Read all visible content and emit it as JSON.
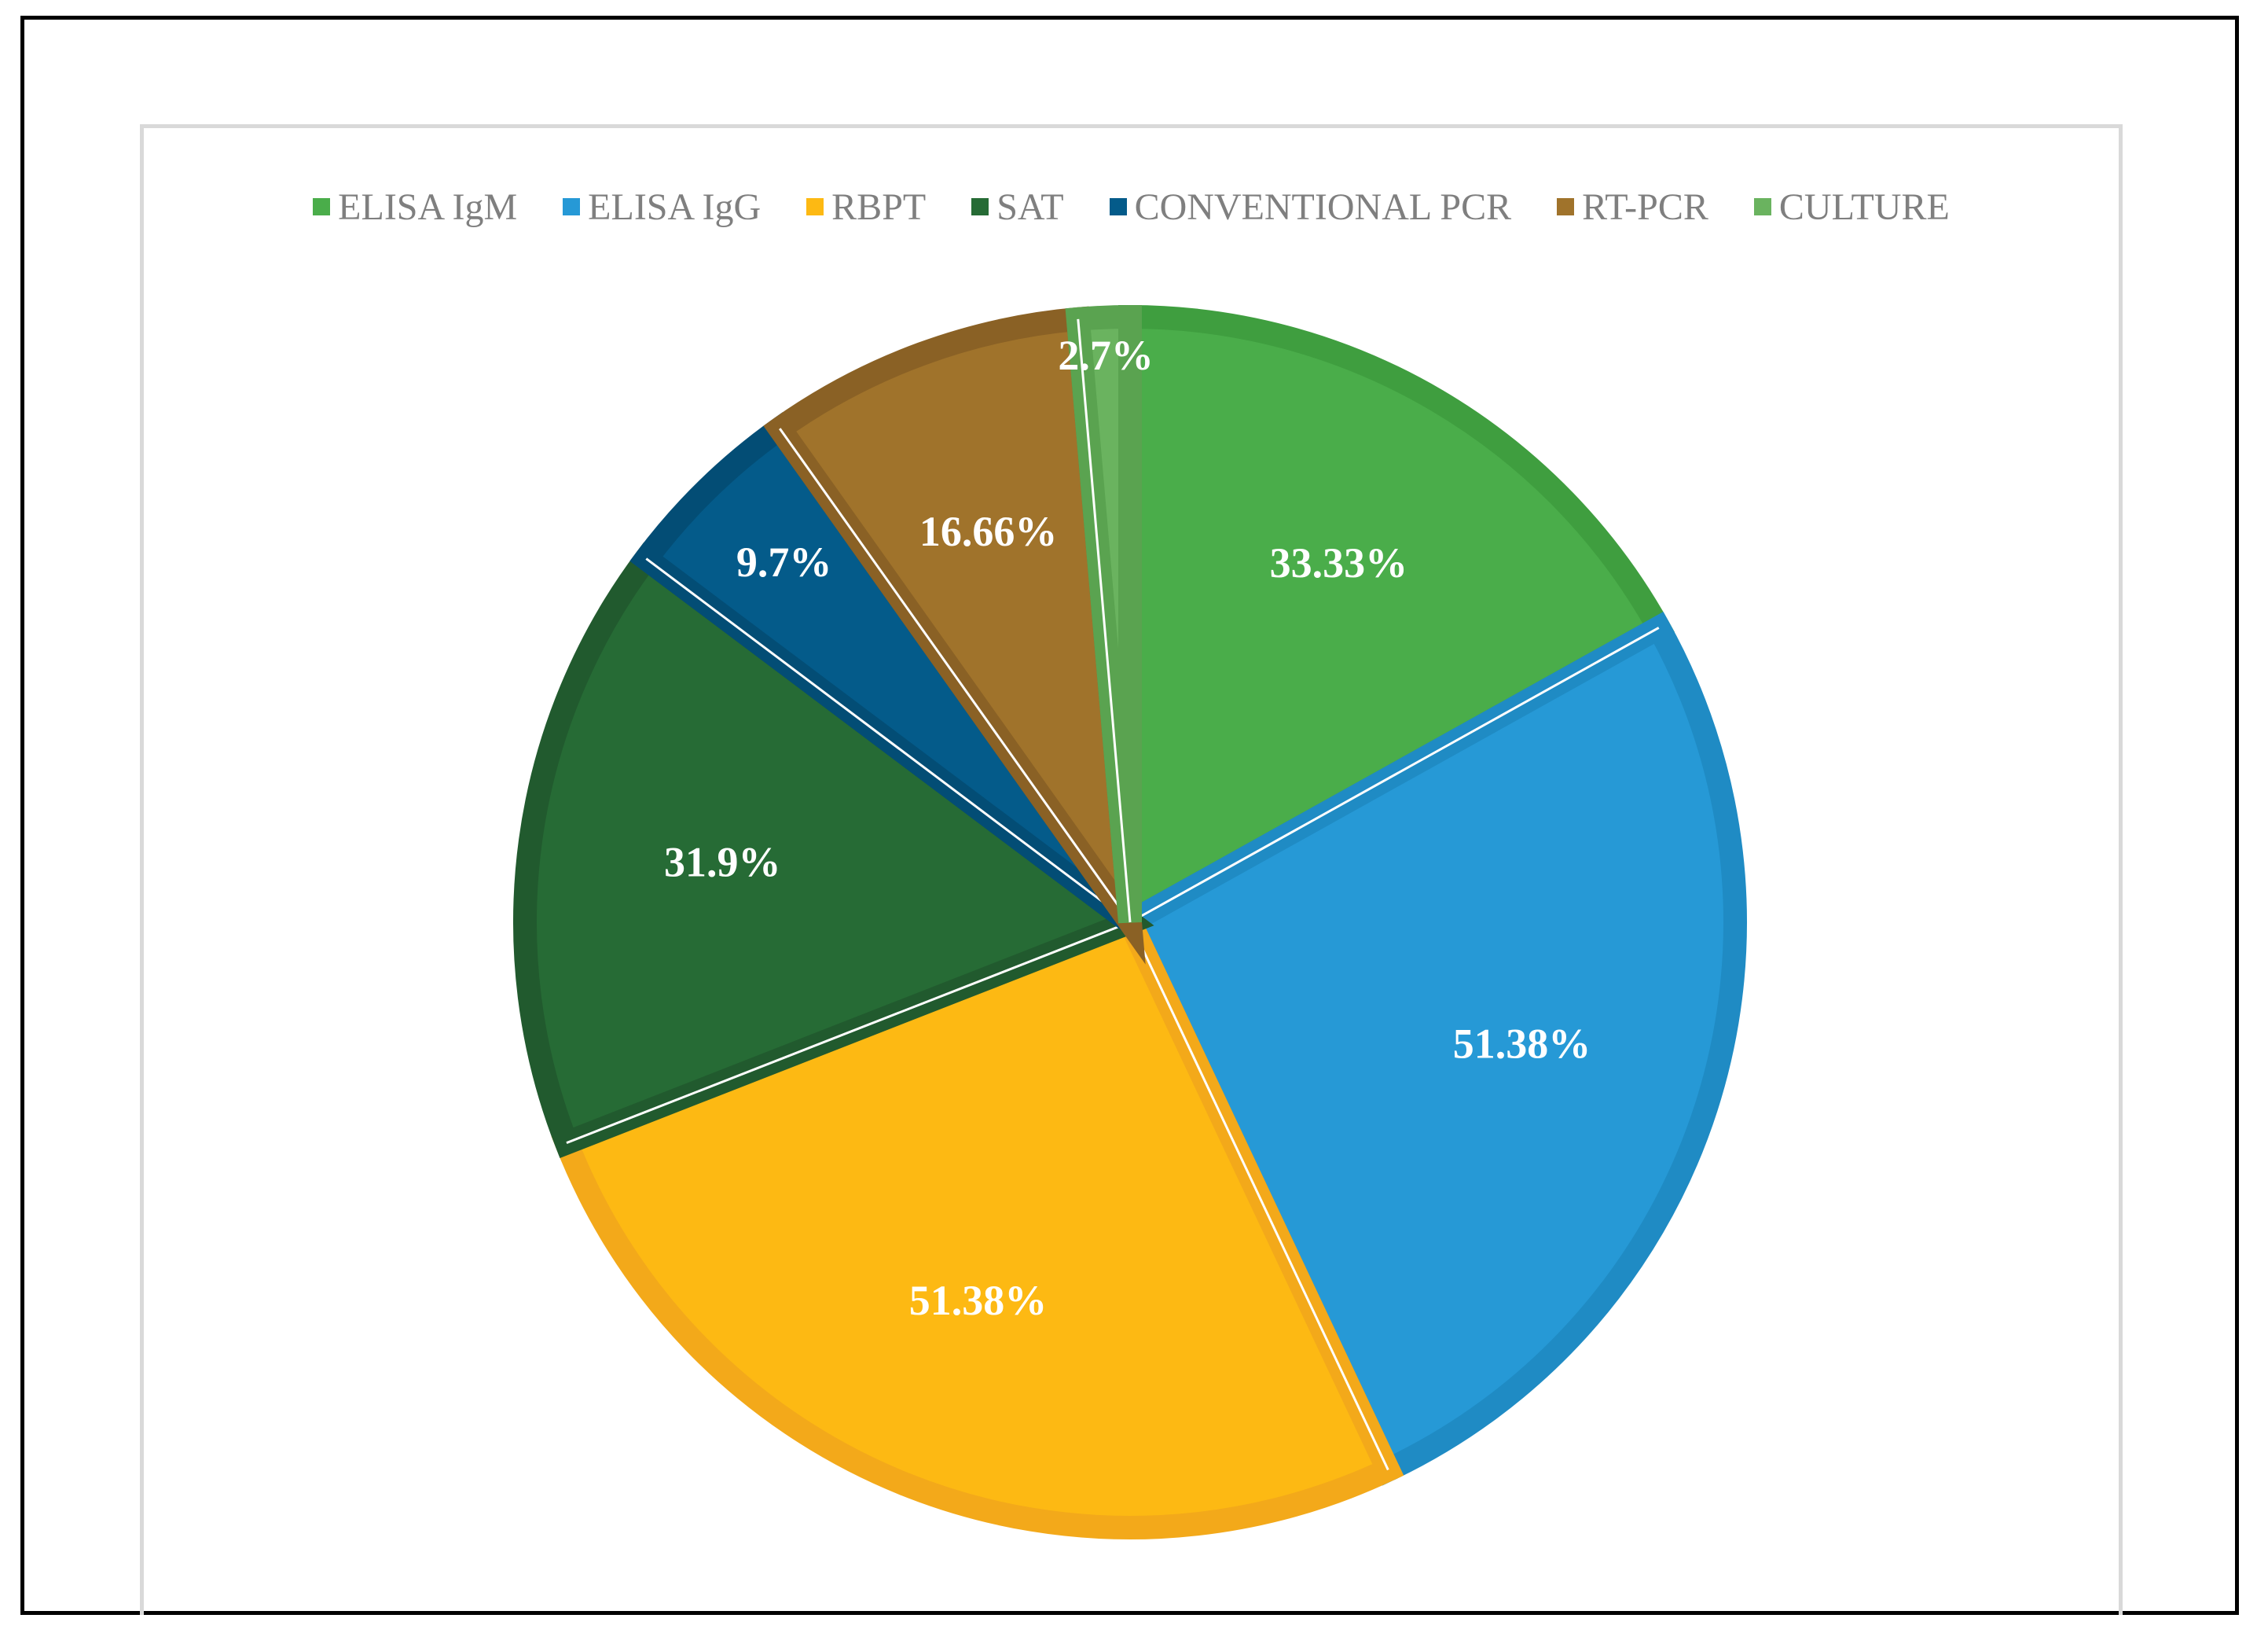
{
  "chart_data": {
    "type": "pie",
    "title": "",
    "legend_position": "top",
    "slices": [
      {
        "name": "ELISA IgM",
        "value": 33.33,
        "label": "33.33%",
        "color": "#4aad4a",
        "border": "#3f9e3f"
      },
      {
        "name": "ELISA IgG",
        "value": 51.38,
        "label": "51.38%",
        "color": "#2699d6",
        "border": "#1f8bc4"
      },
      {
        "name": "RBPT",
        "value": 51.38,
        "label": "51.38%",
        "color": "#fdb913",
        "border": "#f3a91a"
      },
      {
        "name": "SAT",
        "value": 31.9,
        "label": "31.9%",
        "color": "#266b35",
        "border": "#215a2e"
      },
      {
        "name": "CONVENTIONAL PCR",
        "value": 9.7,
        "label": "9.7%",
        "color": "#045b8a",
        "border": "#034d75"
      },
      {
        "name": "RT-PCR",
        "value": 16.66,
        "label": "16.66%",
        "color": "#a0732b",
        "border": "#8a6125"
      },
      {
        "name": "CULTURE",
        "value": 2.7,
        "label": "2.7%",
        "color": "#6ab35f",
        "border": "#5aa350"
      }
    ]
  }
}
